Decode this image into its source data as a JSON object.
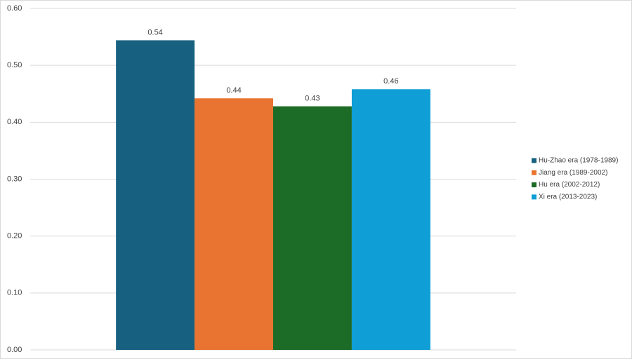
{
  "chart_data": {
    "type": "bar",
    "categories": [
      null
    ],
    "series": [
      {
        "name": "Hu-Zhao era (1978-1989)",
        "color": "#17607f",
        "values": [
          0.544
        ],
        "value_labels": [
          "0.54"
        ]
      },
      {
        "name": "Jiang era (1989-2002)",
        "color": "#e97431",
        "values": [
          0.442
        ],
        "value_labels": [
          "0.44"
        ]
      },
      {
        "name": "Hu era (2002-2012)",
        "color": "#1c6b26",
        "values": [
          0.428
        ],
        "value_labels": [
          "0.43"
        ]
      },
      {
        "name": "Xi era (2013-2023)",
        "color": "#0f9ed5",
        "values": [
          0.458
        ],
        "value_labels": [
          "0.46"
        ]
      }
    ],
    "ylim": [
      0,
      0.6
    ],
    "yticks": [
      {
        "value": 0,
        "label": "0.00"
      },
      {
        "value": 0.1,
        "label": "0.10"
      },
      {
        "value": 0.2,
        "label": "0.20"
      },
      {
        "value": 0.3,
        "label": "0.30"
      },
      {
        "value": 0.4,
        "label": "0.40"
      },
      {
        "value": 0.5,
        "label": "0.50"
      },
      {
        "value": 0.6,
        "label": "0.60"
      }
    ],
    "grid": true,
    "legend": "right"
  }
}
